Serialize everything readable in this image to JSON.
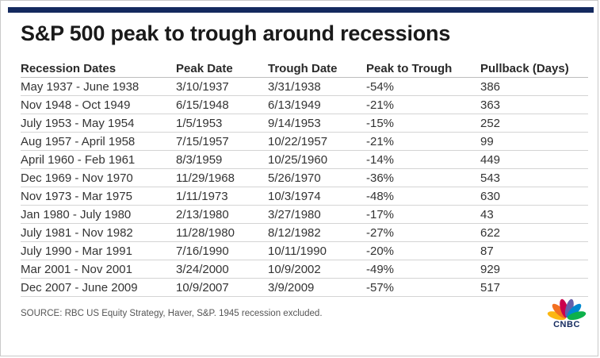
{
  "title": "S&P 500 peak to trough around recessions",
  "table": {
    "headers": [
      "Recession Dates",
      "Peak Date",
      "Trough Date",
      "Peak to Trough",
      "Pullback (Days)"
    ],
    "rows": [
      [
        "May 1937  - June 1938",
        "3/10/1937",
        "3/31/1938",
        "-54%",
        "386"
      ],
      [
        "Nov 1948 - Oct 1949",
        "6/15/1948",
        "6/13/1949",
        "-21%",
        "363"
      ],
      [
        "July 1953 - May 1954",
        "1/5/1953",
        "9/14/1953",
        "-15%",
        "252"
      ],
      [
        "Aug 1957 - April 1958",
        "7/15/1957",
        "10/22/1957",
        "-21%",
        "99"
      ],
      [
        "April 1960 - Feb 1961",
        "8/3/1959",
        "10/25/1960",
        "-14%",
        "449"
      ],
      [
        "Dec 1969 - Nov 1970",
        "11/29/1968",
        "5/26/1970",
        "-36%",
        "543"
      ],
      [
        "Nov 1973 - Mar 1975",
        "1/11/1973",
        "10/3/1974",
        "-48%",
        "630"
      ],
      [
        "Jan 1980 - July 1980",
        "2/13/1980",
        "3/27/1980",
        "-17%",
        "43"
      ],
      [
        "July 1981 - Nov 1982",
        "11/28/1980",
        "8/12/1982",
        "-27%",
        "622"
      ],
      [
        "July 1990 - Mar 1991",
        "7/16/1990",
        "10/11/1990",
        "-20%",
        "87"
      ],
      [
        "Mar 2001 - Nov 2001",
        "3/24/2000",
        "10/9/2002",
        "-49%",
        "929"
      ],
      [
        "Dec 2007 - June 2009",
        "10/9/2007",
        "3/9/2009",
        "-57%",
        "517"
      ]
    ]
  },
  "source": "SOURCE: RBC US Equity Strategy, Haver, S&P. 1945 recession excluded.",
  "logo": {
    "icon": "peacock-icon",
    "text": "CNBC"
  },
  "colors": {
    "accent_bar": "#13295e",
    "peacock": [
      "#fcb711",
      "#f37021",
      "#cc004c",
      "#6460aa",
      "#0089d0",
      "#0db14b"
    ]
  }
}
